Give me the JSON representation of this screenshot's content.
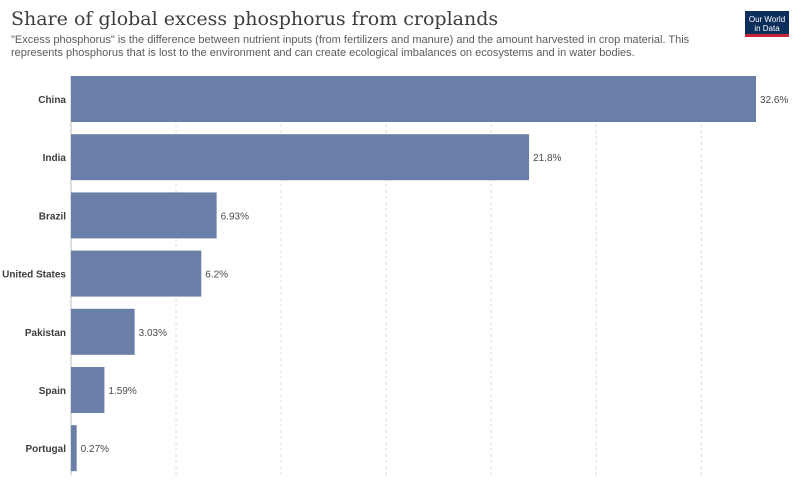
{
  "header": {
    "title": "Share of global excess phosphorus from croplands",
    "subtitle": "\"Excess phosphorus\" is the difference between nutrient inputs (from fertilizers and manure) and the amount harvested in crop material. This represents phosphorus that is lost to the environment and can create ecological imbalances on ecosystems and in water bodies."
  },
  "logo": {
    "line1": "Our World",
    "line2": "in Data"
  },
  "colors": {
    "bar": "#6a7fa8",
    "grid": "#dcdcdc",
    "logo_bg": "#0b2e5b",
    "logo_accent": "#c8243b"
  },
  "chart_data": {
    "type": "bar",
    "orientation": "horizontal",
    "categories": [
      "China",
      "India",
      "Brazil",
      "United States",
      "Pakistan",
      "Spain",
      "Portugal"
    ],
    "values": [
      32.6,
      21.8,
      6.93,
      6.2,
      3.03,
      1.59,
      0.27
    ],
    "value_labels": [
      "32.6%",
      "21.8%",
      "6.93%",
      "6.2%",
      "3.03%",
      "1.59%",
      "0.27%"
    ],
    "xlim": [
      0,
      32.6
    ],
    "grid": true
  }
}
